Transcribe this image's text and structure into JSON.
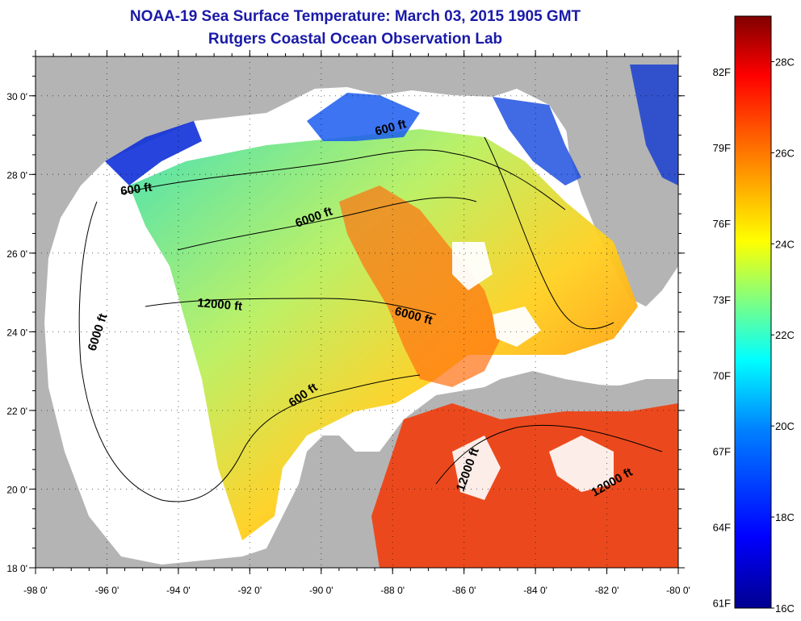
{
  "title": "NOAA-19 Sea Surface Temperature:  March 03, 2015 1905 GMT",
  "subtitle": "Rutgers Coastal Ocean Observation Lab",
  "axes": {
    "lon_ticks": [
      "-98 0'",
      "-96 0'",
      "-94 0'",
      "-92 0'",
      "-90 0'",
      "-88 0'",
      "-86 0'",
      "-84 0'",
      "-82 0'",
      "-80 0'"
    ],
    "lat_ticks": [
      "18 0'",
      "20 0'",
      "22 0'",
      "24 0'",
      "26 0'",
      "28 0'",
      "30 0'"
    ],
    "lon_range": [
      -98,
      -80
    ],
    "lat_range": [
      18,
      31
    ]
  },
  "colorbar": {
    "f_labels": [
      "61F",
      "64F",
      "67F",
      "70F",
      "73F",
      "76F",
      "79F",
      "82F"
    ],
    "c_labels": [
      "16C",
      "18C",
      "20C",
      "22C",
      "24C",
      "26C",
      "28C"
    ],
    "range_c": [
      16,
      29
    ],
    "colors": [
      "#00008f",
      "#0000ff",
      "#0080ff",
      "#00ffff",
      "#80ff80",
      "#ffff00",
      "#ff8000",
      "#ff0000",
      "#800000"
    ]
  },
  "contour_labels": [
    "600 ft",
    "600 ft",
    "6000 ft",
    "12000 ft",
    "6000 ft",
    "6000 ft",
    "600 ft",
    "12000 ft",
    "12000 ft"
  ],
  "colors": {
    "land": "#b4b4b4",
    "no_data": "#ffffff",
    "title": "#1a1aa8"
  }
}
